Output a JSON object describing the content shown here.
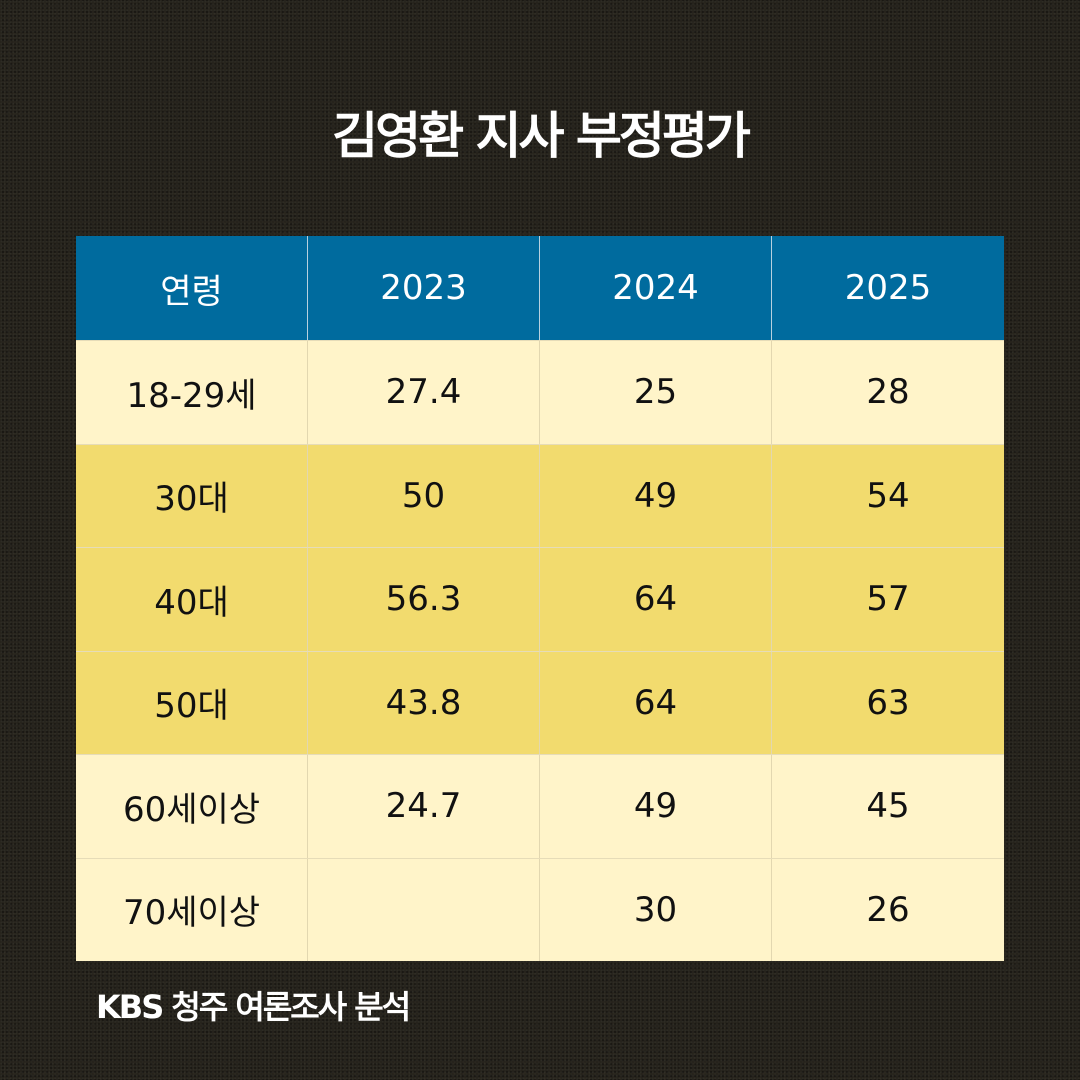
{
  "chart_data": {
    "type": "table",
    "title": "김영환 지사 부정평가",
    "columns": [
      "연령",
      "2023",
      "2024",
      "2025"
    ],
    "rows": [
      [
        "18-29세",
        "27.4",
        "25",
        "28"
      ],
      [
        "30대",
        "50",
        "49",
        "54"
      ],
      [
        "40대",
        "56.3",
        "64",
        "57"
      ],
      [
        "50대",
        "43.8",
        "64",
        "63"
      ],
      [
        "60세이상",
        "24.7",
        "49",
        "45"
      ],
      [
        "70세이상",
        "",
        "30",
        "26"
      ]
    ],
    "source": "KBS 청주 여론조사 분석"
  },
  "colors": {
    "background": "#24211a",
    "header": "#006b9e",
    "row_light": "#fff4c9",
    "row_highlight": "#f2db6e"
  },
  "highlighted_rows": [
    "30대",
    "40대",
    "50대"
  ]
}
